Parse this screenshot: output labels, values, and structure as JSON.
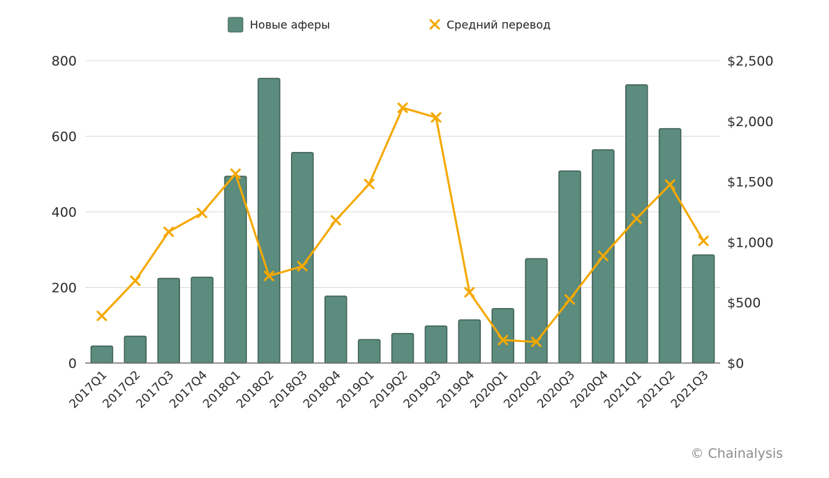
{
  "chart_data": {
    "type": "bar",
    "categories": [
      "2017Q1",
      "2017Q2",
      "2017Q3",
      "2017Q4",
      "2018Q1",
      "2018Q2",
      "2018Q3",
      "2018Q4",
      "2019Q1",
      "2019Q2",
      "2019Q3",
      "2019Q4",
      "2020Q1",
      "2020Q2",
      "2020Q3",
      "2020Q4",
      "2021Q1",
      "2021Q2",
      "2021Q3"
    ],
    "series": [
      {
        "name": "Новые аферы",
        "type": "bar",
        "axis": "left",
        "color": "#5b8c7d",
        "values": [
          45,
          71,
          224,
          227,
          494,
          753,
          557,
          177,
          62,
          78,
          98,
          114,
          144,
          276,
          508,
          564,
          736,
          620,
          286
        ]
      },
      {
        "name": "Средний перевод",
        "type": "line",
        "axis": "right",
        "color": "#f5a800",
        "marker": "x",
        "values": [
          390,
          680,
          1085,
          1240,
          1565,
          720,
          800,
          1180,
          1480,
          2110,
          2030,
          585,
          190,
          175,
          525,
          885,
          1195,
          1475,
          1010
        ]
      }
    ],
    "y_left": {
      "ticks": [
        "0",
        "200",
        "400",
        "600",
        "800"
      ],
      "ylim": [
        0,
        800
      ]
    },
    "y_right": {
      "ticks": [
        "$0",
        "$500",
        "$1,000",
        "$1,500",
        "$2,000",
        "$2,500"
      ],
      "ylim": [
        0,
        2500
      ]
    },
    "grid": true,
    "legend": "top-center",
    "title": "",
    "xlabel": "",
    "ylabel": ""
  },
  "legend": {
    "bar_label": "Новые аферы",
    "line_label": "Средний перевод"
  },
  "watermark": "© Chainalysis",
  "colors": {
    "bar_fill": "#5b8c7d",
    "bar_stroke": "#3f5f55",
    "line": "#f5a800",
    "grid": "#d9d9d9",
    "axis": "#6f6f6f"
  }
}
